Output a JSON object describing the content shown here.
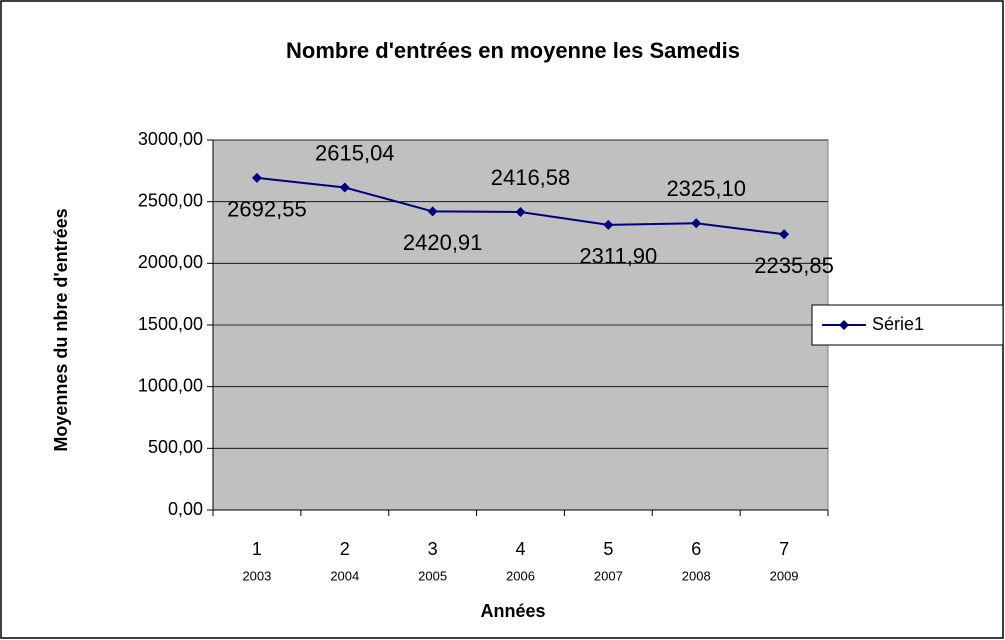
{
  "chart_data": {
    "type": "line",
    "title": "Nombre d'entrées en moyenne les Samedis",
    "x_label": "Années",
    "y_label": "Moyennes du nbre d'entrées",
    "categories": [
      "1",
      "2",
      "3",
      "4",
      "5",
      "6",
      "7"
    ],
    "category_sublabels": [
      "2003",
      "2004",
      "2005",
      "2006",
      "2007",
      "2008",
      "2009"
    ],
    "series": [
      {
        "name": "Série1",
        "color": "#000080",
        "values": [
          2692.55,
          2615.04,
          2420.91,
          2416.58,
          2311.9,
          2325.1,
          2235.85
        ],
        "value_labels": [
          "2692,55",
          "2615,04",
          "2420,91",
          "2416,58",
          "2311,90",
          "2325,10",
          "2235,85"
        ]
      }
    ],
    "ylim": [
      0,
      3000
    ],
    "yticks": [
      {
        "value": 0,
        "label": "0,00"
      },
      {
        "value": 500,
        "label": "500,00"
      },
      {
        "value": 1000,
        "label": "1000,00"
      },
      {
        "value": 1500,
        "label": "1500,00"
      },
      {
        "value": 2000,
        "label": "2000,00"
      },
      {
        "value": 2500,
        "label": "2500,00"
      },
      {
        "value": 3000,
        "label": "3000,00"
      }
    ],
    "grid": true,
    "legend": "right",
    "plot_background": "#c0c0c0"
  }
}
